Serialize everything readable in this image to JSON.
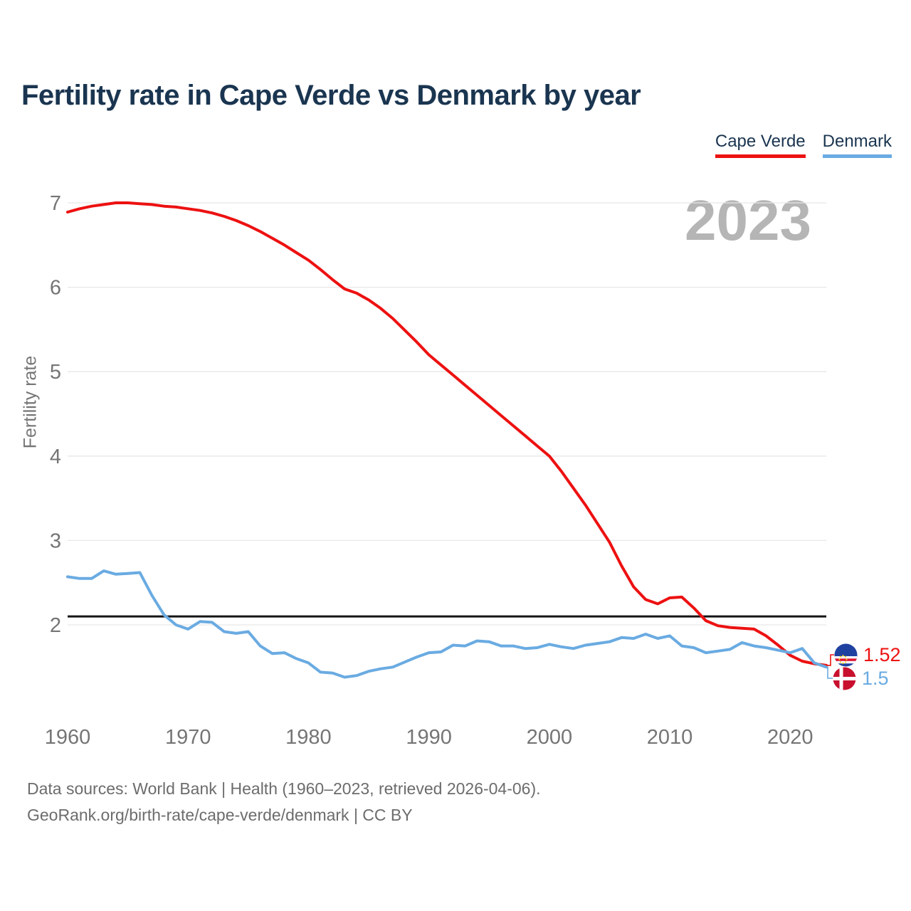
{
  "title": "Fertility rate in Cape Verde vs Denmark by year",
  "watermark_year": "2023",
  "legend": [
    {
      "label": "Cape Verde",
      "color": "#ed1111"
    },
    {
      "label": "Denmark",
      "color": "#6aabe2"
    }
  ],
  "end_labels": [
    {
      "series": "Cape Verde",
      "value": "1.52",
      "flag": "cape-verde-flag",
      "color": "#ed1111"
    },
    {
      "series": "Denmark",
      "value": "1.5",
      "flag": "denmark-flag",
      "color": "#6aabe2"
    }
  ],
  "footer": {
    "line1": "Data sources: World Bank | Health (1960–2023, retrieved 2026-04-06).",
    "line2": "GeoRank.org/birth-rate/cape-verde/denmark | CC BY"
  },
  "chart_data": {
    "type": "line",
    "title": "Fertility rate in Cape Verde vs Denmark by year",
    "xlabel": "",
    "ylabel": "Fertility rate",
    "xlim": [
      1960,
      2023
    ],
    "ylim": [
      1.3,
      7.05
    ],
    "yticks": [
      2,
      3,
      4,
      5,
      6,
      7
    ],
    "xticks": [
      1960,
      1970,
      1980,
      1990,
      2000,
      2010,
      2020
    ],
    "grid": "horizontal",
    "legend_position": "top-right",
    "replacement_line": 2.1,
    "years": [
      1960,
      1961,
      1962,
      1963,
      1964,
      1965,
      1966,
      1967,
      1968,
      1969,
      1970,
      1971,
      1972,
      1973,
      1974,
      1975,
      1976,
      1977,
      1978,
      1979,
      1980,
      1981,
      1982,
      1983,
      1984,
      1985,
      1986,
      1987,
      1988,
      1989,
      1990,
      1991,
      1992,
      1993,
      1994,
      1995,
      1996,
      1997,
      1998,
      1999,
      2000,
      2001,
      2002,
      2003,
      2004,
      2005,
      2006,
      2007,
      2008,
      2009,
      2010,
      2011,
      2012,
      2013,
      2014,
      2015,
      2016,
      2017,
      2018,
      2019,
      2020,
      2021,
      2022,
      2023
    ],
    "series": [
      {
        "name": "Cape Verde",
        "color": "#ed1111",
        "values": [
          6.89,
          6.93,
          6.96,
          6.98,
          7.0,
          7.0,
          6.99,
          6.98,
          6.96,
          6.95,
          6.93,
          6.91,
          6.88,
          6.84,
          6.79,
          6.73,
          6.66,
          6.58,
          6.5,
          6.41,
          6.32,
          6.21,
          6.09,
          5.98,
          5.93,
          5.85,
          5.75,
          5.63,
          5.49,
          5.35,
          5.2,
          5.08,
          4.96,
          4.84,
          4.72,
          4.6,
          4.48,
          4.36,
          4.24,
          4.12,
          4.0,
          3.82,
          3.62,
          3.42,
          3.2,
          2.98,
          2.7,
          2.45,
          2.3,
          2.25,
          2.32,
          2.33,
          2.2,
          2.05,
          1.99,
          1.97,
          1.96,
          1.95,
          1.87,
          1.76,
          1.64,
          1.57,
          1.54,
          1.52
        ]
      },
      {
        "name": "Denmark",
        "color": "#6aabe2",
        "values": [
          2.57,
          2.55,
          2.55,
          2.64,
          2.6,
          2.61,
          2.62,
          2.35,
          2.12,
          2.0,
          1.95,
          2.04,
          2.03,
          1.92,
          1.9,
          1.92,
          1.75,
          1.66,
          1.67,
          1.6,
          1.55,
          1.44,
          1.43,
          1.38,
          1.4,
          1.45,
          1.48,
          1.5,
          1.56,
          1.62,
          1.67,
          1.68,
          1.76,
          1.75,
          1.81,
          1.8,
          1.75,
          1.75,
          1.72,
          1.73,
          1.77,
          1.74,
          1.72,
          1.76,
          1.78,
          1.8,
          1.85,
          1.84,
          1.89,
          1.84,
          1.87,
          1.75,
          1.73,
          1.67,
          1.69,
          1.71,
          1.79,
          1.75,
          1.73,
          1.7,
          1.67,
          1.72,
          1.55,
          1.5
        ]
      }
    ]
  }
}
